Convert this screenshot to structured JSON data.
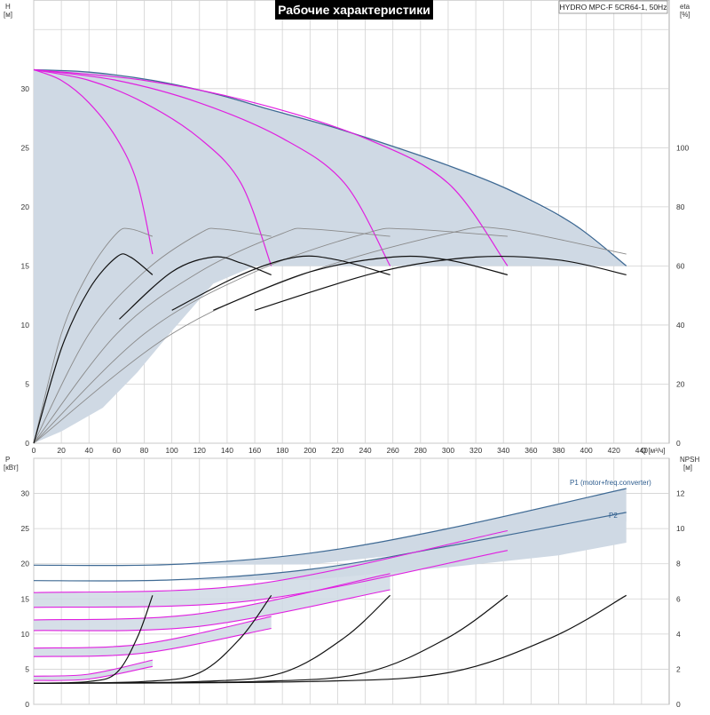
{
  "title": "Рабочие характеристики",
  "model": "HYDRO MPC-F 5CR64-1, 50Hz",
  "colors": {
    "envelope_fill": "#cfd9e4",
    "envelope_edge": "#3f6a94",
    "magenta": "#e020e0",
    "black": "#111111",
    "gray": "#8a8a8a",
    "grid": "#d2d2d2",
    "title_bg": "#000000",
    "title_fg": "#ffffff"
  },
  "chart_data": [
    {
      "type": "line",
      "name": "head_eta",
      "x_label": "Q [м³/ч]",
      "y_label_top": "H",
      "y_label_bottom": "[м]",
      "y2_label_top": "eta",
      "y2_label_bottom": "[%]",
      "xlim": [
        0,
        460
      ],
      "ylim": [
        0,
        37.5
      ],
      "y2lim": [
        0,
        150
      ],
      "x_ticks": [
        0,
        20,
        40,
        60,
        80,
        100,
        120,
        140,
        160,
        180,
        200,
        220,
        240,
        260,
        280,
        300,
        320,
        340,
        360,
        380,
        400,
        420,
        440
      ],
      "y_ticks": [
        0,
        5,
        10,
        15,
        20,
        25,
        30
      ],
      "y2_ticks": [
        0,
        20,
        40,
        60,
        80,
        100
      ],
      "envelope": {
        "upper": [
          [
            0,
            31.6
          ],
          [
            40,
            31.4
          ],
          [
            86,
            30.7
          ],
          [
            130,
            29.6
          ],
          [
            172,
            28.2
          ],
          [
            215,
            26.8
          ],
          [
            258,
            25.2
          ],
          [
            300,
            23.5
          ],
          [
            343,
            21.5
          ],
          [
            390,
            18.6
          ],
          [
            429,
            15.0
          ]
        ],
        "lower": [
          [
            429,
            15.0
          ],
          [
            0,
            15.0
          ]
        ],
        "left_lower": [
          [
            0,
            0
          ],
          [
            20,
            1
          ],
          [
            50,
            3
          ],
          [
            75,
            6
          ],
          [
            100,
            9.5
          ],
          [
            130,
            13.5
          ],
          [
            160,
            15.0
          ]
        ]
      },
      "pump_head_curves": [
        {
          "pumps": 1,
          "points": [
            [
              0,
              31.6
            ],
            [
              20,
              30.7
            ],
            [
              40,
              28.8
            ],
            [
              60,
              25.8
            ],
            [
              75,
              22.0
            ],
            [
              86,
              16.0
            ]
          ]
        },
        {
          "pumps": 2,
          "points": [
            [
              0,
              31.6
            ],
            [
              40,
              30.7
            ],
            [
              80,
              28.8
            ],
            [
              120,
              25.8
            ],
            [
              150,
              22.0
            ],
            [
              172,
              15.0
            ]
          ]
        },
        {
          "pumps": 3,
          "points": [
            [
              0,
              31.6
            ],
            [
              60,
              30.7
            ],
            [
              120,
              28.8
            ],
            [
              180,
              25.8
            ],
            [
              225,
              22.0
            ],
            [
              258,
              15.0
            ]
          ]
        },
        {
          "pumps": 4,
          "points": [
            [
              0,
              31.6
            ],
            [
              80,
              30.7
            ],
            [
              160,
              28.8
            ],
            [
              240,
              25.8
            ],
            [
              300,
              22.0
            ],
            [
              343,
              15.0
            ]
          ]
        }
      ],
      "eta_curves_black": [
        {
          "points": [
            [
              0,
              0
            ],
            [
              20,
              32
            ],
            [
              40,
              52
            ],
            [
              60,
              63
            ],
            [
              70,
              63
            ],
            [
              86,
              57
            ]
          ]
        },
        {
          "points": [
            [
              62,
              42
            ],
            [
              100,
              58
            ],
            [
              130,
              63
            ],
            [
              150,
              61
            ],
            [
              172,
              57
            ]
          ]
        },
        {
          "points": [
            [
              100,
              45
            ],
            [
              150,
              57
            ],
            [
              190,
              63
            ],
            [
              220,
              62
            ],
            [
              258,
              57
            ]
          ]
        },
        {
          "points": [
            [
              130,
              45
            ],
            [
              200,
              58
            ],
            [
              260,
              63
            ],
            [
              300,
              62
            ],
            [
              343,
              57
            ]
          ]
        },
        {
          "points": [
            [
              160,
              45
            ],
            [
              250,
              58
            ],
            [
              320,
              63
            ],
            [
              380,
              62
            ],
            [
              429,
              57
            ]
          ]
        }
      ],
      "eta_curves_gray": [
        {
          "points": [
            [
              0,
              0
            ],
            [
              20,
              37
            ],
            [
              40,
              58
            ],
            [
              60,
              71
            ],
            [
              70,
              72.5
            ],
            [
              86,
              70
            ]
          ]
        },
        {
          "points": [
            [
              0,
              0
            ],
            [
              40,
              37
            ],
            [
              80,
              58
            ],
            [
              120,
              71
            ],
            [
              135,
              72.5
            ],
            [
              172,
              70
            ]
          ]
        },
        {
          "points": [
            [
              0,
              0
            ],
            [
              60,
              37
            ],
            [
              120,
              58
            ],
            [
              180,
              71
            ],
            [
              200,
              72.5
            ],
            [
              258,
              70
            ]
          ]
        },
        {
          "points": [
            [
              0,
              0
            ],
            [
              80,
              37
            ],
            [
              160,
              58
            ],
            [
              240,
              71
            ],
            [
              270,
              72.5
            ],
            [
              343,
              70
            ]
          ]
        },
        {
          "points": [
            [
              0,
              0
            ],
            [
              100,
              37
            ],
            [
              200,
              58
            ],
            [
              300,
              71
            ],
            [
              340,
              72.5
            ],
            [
              429,
              64
            ]
          ]
        }
      ]
    },
    {
      "type": "line",
      "name": "power_npsh",
      "y_label_top": "P",
      "y_label_bottom": "[кВт]",
      "y2_label_top": "NPSH",
      "y2_label_bottom": "[м]",
      "xlim": [
        0,
        460
      ],
      "ylim": [
        0,
        35
      ],
      "y2lim": [
        0,
        14
      ],
      "y_ticks": [
        0,
        5,
        10,
        15,
        20,
        25,
        30
      ],
      "y2_ticks": [
        0,
        2,
        4,
        6,
        8,
        10,
        12
      ],
      "series_labels": [
        "P1 (motor+freq.converter)",
        "P2"
      ],
      "p1_envelope": [
        [
          0,
          19.8
        ],
        [
          100,
          19.9
        ],
        [
          200,
          21.5
        ],
        [
          300,
          25.0
        ],
        [
          429,
          30.7
        ]
      ],
      "p2_envelope": [
        [
          0,
          17.6
        ],
        [
          100,
          17.7
        ],
        [
          200,
          19.2
        ],
        [
          300,
          22.5
        ],
        [
          429,
          27.3
        ]
      ],
      "p1_band_lower": [
        [
          0,
          19.8
        ],
        [
          200,
          19.9
        ],
        [
          300,
          22.0
        ],
        [
          360,
          23.8
        ],
        [
          429,
          26.0
        ],
        [
          429,
          30.7
        ]
      ],
      "p2_band_lower": [
        [
          0,
          17.6
        ],
        [
          200,
          17.7
        ],
        [
          300,
          19.5
        ],
        [
          380,
          21.2
        ],
        [
          429,
          23.0
        ],
        [
          429,
          27.3
        ]
      ],
      "magenta_power": [
        {
          "points": [
            [
              0,
              4.0
            ],
            [
              40,
              4.3
            ],
            [
              86,
              6.3
            ]
          ]
        },
        {
          "points": [
            [
              0,
              3.4
            ],
            [
              40,
              3.6
            ],
            [
              86,
              5.4
            ]
          ]
        },
        {
          "points": [
            [
              0,
              8.0
            ],
            [
              80,
              8.6
            ],
            [
              172,
              12.5
            ]
          ]
        },
        {
          "points": [
            [
              0,
              6.8
            ],
            [
              80,
              7.3
            ],
            [
              172,
              10.8
            ]
          ]
        },
        {
          "points": [
            [
              0,
              12.0
            ],
            [
              120,
              12.9
            ],
            [
              258,
              18.6
            ]
          ]
        },
        {
          "points": [
            [
              0,
              10.5
            ],
            [
              120,
              11.1
            ],
            [
              258,
              16.3
            ]
          ]
        },
        {
          "points": [
            [
              0,
              15.9
            ],
            [
              160,
              17.1
            ],
            [
              343,
              24.7
            ]
          ]
        },
        {
          "points": [
            [
              0,
              13.8
            ],
            [
              160,
              14.8
            ],
            [
              343,
              21.9
            ]
          ]
        }
      ],
      "npsh_curves": [
        {
          "points": [
            [
              0,
              1.2
            ],
            [
              40,
              1.3
            ],
            [
              60,
              1.8
            ],
            [
              75,
              3.8
            ],
            [
              86,
              6.2
            ]
          ]
        },
        {
          "points": [
            [
              0,
              1.2
            ],
            [
              80,
              1.3
            ],
            [
              120,
              1.8
            ],
            [
              150,
              3.8
            ],
            [
              172,
              6.2
            ]
          ]
        },
        {
          "points": [
            [
              0,
              1.2
            ],
            [
              120,
              1.3
            ],
            [
              180,
              1.8
            ],
            [
              225,
              3.8
            ],
            [
              258,
              6.2
            ]
          ]
        },
        {
          "points": [
            [
              0,
              1.2
            ],
            [
              160,
              1.3
            ],
            [
              240,
              1.8
            ],
            [
              300,
              3.8
            ],
            [
              343,
              6.2
            ]
          ]
        },
        {
          "points": [
            [
              0,
              1.2
            ],
            [
              200,
              1.3
            ],
            [
              300,
              1.8
            ],
            [
              375,
              3.8
            ],
            [
              429,
              6.2
            ]
          ]
        }
      ]
    }
  ]
}
